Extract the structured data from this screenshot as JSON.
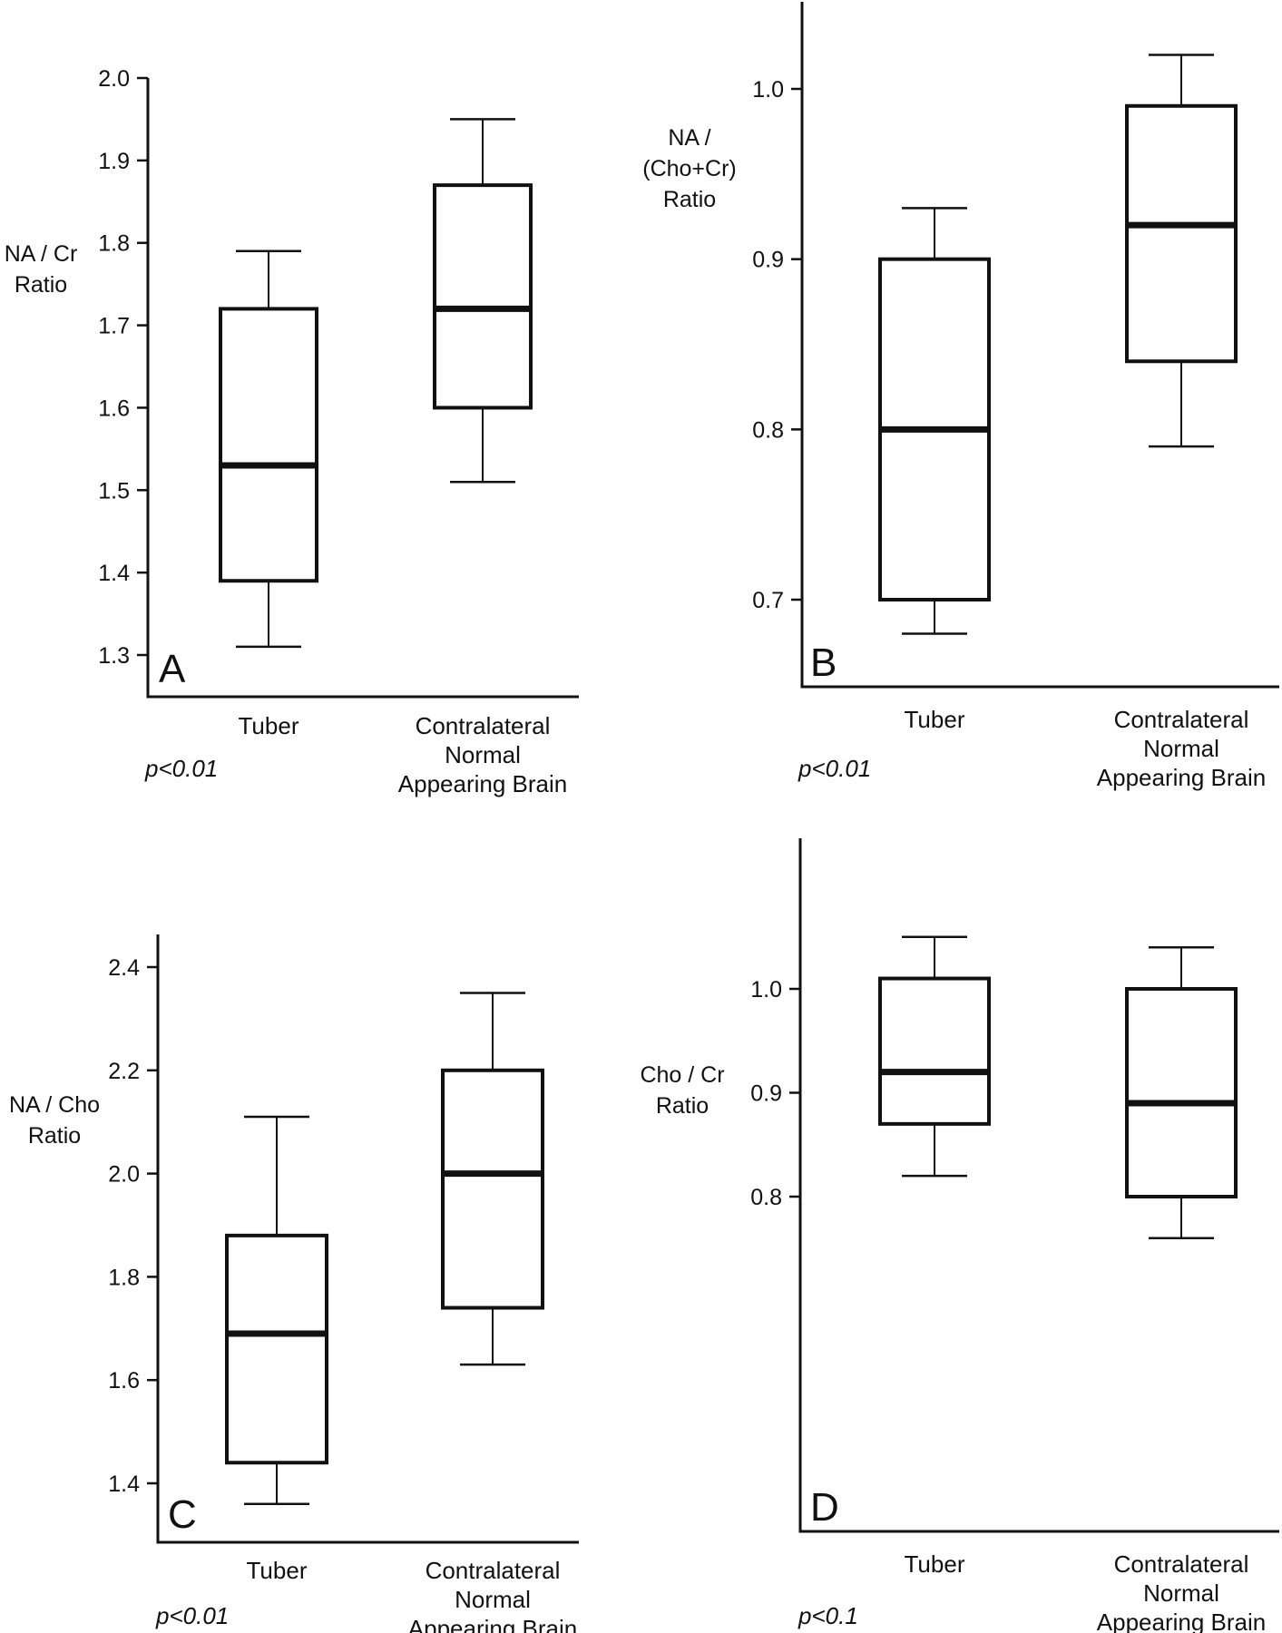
{
  "chart_data": [
    {
      "type": "box",
      "panel": "A",
      "ylabel": "NA / Cr Ratio",
      "ylabel_lines": [
        "NA / Cr",
        "Ratio"
      ],
      "categories": [
        "Tuber",
        "Contralateral Normal Appearing Brain"
      ],
      "category_lines": [
        [
          "Tuber"
        ],
        [
          "Contralateral",
          "Normal",
          "Appearing Brain"
        ]
      ],
      "yticks": [
        1.3,
        1.4,
        1.5,
        1.6,
        1.7,
        1.8,
        1.9,
        2.0
      ],
      "ytick_labels": [
        "1.3",
        "1.4",
        "1.5",
        "1.6",
        "1.7",
        "1.8",
        "1.9",
        "2.0"
      ],
      "ylim": [
        1.25,
        2.0
      ],
      "boxes": [
        {
          "min": 1.31,
          "q1": 1.39,
          "median": 1.53,
          "q3": 1.72,
          "max": 1.79
        },
        {
          "min": 1.51,
          "q1": 1.6,
          "median": 1.72,
          "q3": 1.87,
          "max": 1.95
        }
      ],
      "annotation": "p<0.01"
    },
    {
      "type": "box",
      "panel": "B",
      "ylabel": "NA / (Cho+Cr) Ratio",
      "ylabel_lines": [
        "NA /",
        "(Cho+Cr)",
        "Ratio"
      ],
      "categories": [
        "Tuber",
        "Contralateral Normal Appearing Brain"
      ],
      "category_lines": [
        [
          "Tuber"
        ],
        [
          "Contralateral",
          "Normal",
          "Appearing Brain"
        ]
      ],
      "yticks": [
        0.7,
        0.8,
        0.9,
        1.0
      ],
      "ytick_labels": [
        "0.7",
        "0.8",
        "0.9",
        "1.0"
      ],
      "ylim": [
        0.65,
        1.05
      ],
      "boxes": [
        {
          "min": 0.68,
          "q1": 0.7,
          "median": 0.8,
          "q3": 0.9,
          "max": 0.93
        },
        {
          "min": 0.79,
          "q1": 0.84,
          "median": 0.92,
          "q3": 0.99,
          "max": 1.02
        }
      ],
      "annotation": "p<0.01"
    },
    {
      "type": "box",
      "panel": "C",
      "ylabel": "NA / Cho Ratio",
      "ylabel_lines": [
        "NA / Cho",
        "Ratio"
      ],
      "categories": [
        "Tuber",
        "Contralateral Normal Appearing Brain"
      ],
      "category_lines": [
        [
          "Tuber"
        ],
        [
          "Contralateral",
          "Normal",
          "Appearing Brain"
        ]
      ],
      "yticks": [
        1.4,
        1.6,
        1.8,
        2.0,
        2.2,
        2.4
      ],
      "ytick_labels": [
        "1.4",
        "1.6",
        "1.8",
        "2.0",
        "2.2",
        "2.4"
      ],
      "ylim": [
        1.3,
        2.45
      ],
      "boxes": [
        {
          "min": 1.36,
          "q1": 1.44,
          "median": 1.69,
          "q3": 1.88,
          "max": 2.11
        },
        {
          "min": 1.63,
          "q1": 1.74,
          "median": 2.0,
          "q3": 2.2,
          "max": 2.35
        }
      ],
      "annotation": "p<0.01"
    },
    {
      "type": "box",
      "panel": "D",
      "ylabel": "Cho / Cr Ratio",
      "ylabel_lines": [
        "Cho / Cr",
        "Ratio"
      ],
      "categories": [
        "Tuber",
        "Contralateral Normal Appearing Brain"
      ],
      "category_lines": [
        [
          "Tuber"
        ],
        [
          "Contralateral",
          "Normal",
          "Appearing Brain"
        ]
      ],
      "yticks": [
        0.8,
        0.9,
        1.0
      ],
      "ytick_labels": [
        "0.8",
        "0.9",
        "1.0"
      ],
      "ylim": [
        0.74,
        1.06
      ],
      "boxes": [
        {
          "min": 0.82,
          "q1": 0.87,
          "median": 0.92,
          "q3": 1.01,
          "max": 1.05
        },
        {
          "min": 0.76,
          "q1": 0.8,
          "median": 0.89,
          "q3": 1.0,
          "max": 1.04
        }
      ],
      "annotation": "p<0.1"
    }
  ]
}
